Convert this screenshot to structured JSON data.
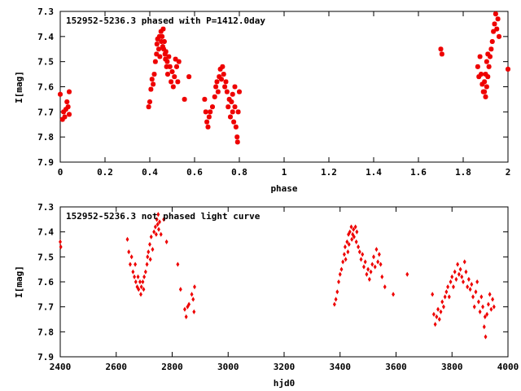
{
  "colors": {
    "series": "#ee0000",
    "axes": "#000000",
    "background": "#ffffff"
  },
  "chart_data": [
    {
      "type": "scatter",
      "title": "152952-5236.3 phased with P=1412.0day",
      "xlabel": "phase",
      "ylabel": "I[mag]",
      "xlim": [
        0,
        2
      ],
      "ylim": [
        7.3,
        7.9
      ],
      "y_inverted": true,
      "grid": false,
      "marker": "star",
      "xticks": [
        "0",
        "0.2",
        "0.4",
        "0.6",
        "0.8",
        "1",
        "1.2",
        "1.4",
        "1.6",
        "1.8",
        "2"
      ],
      "xtick_values": [
        0,
        0.2,
        0.4,
        0.6,
        0.8,
        1,
        1.2,
        1.4,
        1.6,
        1.8,
        2
      ],
      "yticks": [
        "7.3",
        "7.4",
        "7.5",
        "7.6",
        "7.7",
        "7.8",
        "7.9"
      ],
      "ytick_values": [
        7.3,
        7.4,
        7.5,
        7.6,
        7.7,
        7.8,
        7.9
      ],
      "points": [
        [
          0.0,
          7.63
        ],
        [
          0.01,
          7.73
        ],
        [
          0.015,
          7.7
        ],
        [
          0.02,
          7.72
        ],
        [
          0.025,
          7.69
        ],
        [
          0.03,
          7.66
        ],
        [
          0.035,
          7.68
        ],
        [
          0.04,
          7.71
        ],
        [
          0.04,
          7.62
        ],
        [
          0.395,
          7.68
        ],
        [
          0.4,
          7.66
        ],
        [
          0.405,
          7.61
        ],
        [
          0.41,
          7.57
        ],
        [
          0.415,
          7.59
        ],
        [
          0.42,
          7.55
        ],
        [
          0.425,
          7.5
        ],
        [
          0.43,
          7.47
        ],
        [
          0.432,
          7.43
        ],
        [
          0.435,
          7.41
        ],
        [
          0.44,
          7.45
        ],
        [
          0.443,
          7.4
        ],
        [
          0.445,
          7.48
        ],
        [
          0.45,
          7.38
        ],
        [
          0.452,
          7.42
        ],
        [
          0.455,
          7.4
        ],
        [
          0.458,
          7.44
        ],
        [
          0.46,
          7.37
        ],
        [
          0.462,
          7.45
        ],
        [
          0.465,
          7.42
        ],
        [
          0.468,
          7.47
        ],
        [
          0.47,
          7.49
        ],
        [
          0.472,
          7.46
        ],
        [
          0.475,
          7.52
        ],
        [
          0.478,
          7.5
        ],
        [
          0.48,
          7.55
        ],
        [
          0.485,
          7.48
        ],
        [
          0.49,
          7.52
        ],
        [
          0.495,
          7.58
        ],
        [
          0.5,
          7.54
        ],
        [
          0.505,
          7.6
        ],
        [
          0.51,
          7.56
        ],
        [
          0.515,
          7.49
        ],
        [
          0.52,
          7.52
        ],
        [
          0.525,
          7.58
        ],
        [
          0.53,
          7.5
        ],
        [
          0.555,
          7.65
        ],
        [
          0.575,
          7.56
        ],
        [
          0.645,
          7.65
        ],
        [
          0.65,
          7.7
        ],
        [
          0.655,
          7.74
        ],
        [
          0.66,
          7.76
        ],
        [
          0.665,
          7.72
        ],
        [
          0.67,
          7.7
        ],
        [
          0.68,
          7.68
        ],
        [
          0.69,
          7.64
        ],
        [
          0.695,
          7.6
        ],
        [
          0.7,
          7.58
        ],
        [
          0.705,
          7.62
        ],
        [
          0.71,
          7.56
        ],
        [
          0.715,
          7.53
        ],
        [
          0.72,
          7.57
        ],
        [
          0.725,
          7.52
        ],
        [
          0.73,
          7.55
        ],
        [
          0.735,
          7.6
        ],
        [
          0.74,
          7.58
        ],
        [
          0.745,
          7.62
        ],
        [
          0.75,
          7.68
        ],
        [
          0.755,
          7.65
        ],
        [
          0.76,
          7.72
        ],
        [
          0.765,
          7.66
        ],
        [
          0.77,
          7.7
        ],
        [
          0.775,
          7.74
        ],
        [
          0.78,
          7.68
        ],
        [
          0.785,
          7.76
        ],
        [
          0.79,
          7.8
        ],
        [
          0.792,
          7.82
        ],
        [
          0.795,
          7.7
        ],
        [
          0.8,
          7.62
        ],
        [
          0.78,
          7.6
        ],
        [
          0.77,
          7.63
        ],
        [
          1.7,
          7.45
        ],
        [
          1.705,
          7.47
        ],
        [
          1.865,
          7.52
        ],
        [
          1.87,
          7.56
        ],
        [
          1.875,
          7.48
        ],
        [
          1.88,
          7.55
        ],
        [
          1.885,
          7.59
        ],
        [
          1.89,
          7.62
        ],
        [
          1.895,
          7.58
        ],
        [
          1.9,
          7.64
        ],
        [
          1.905,
          7.6
        ],
        [
          1.91,
          7.56
        ],
        [
          1.915,
          7.52
        ],
        [
          1.92,
          7.48
        ],
        [
          1.925,
          7.45
        ],
        [
          1.93,
          7.42
        ],
        [
          1.935,
          7.38
        ],
        [
          1.94,
          7.35
        ],
        [
          1.945,
          7.31
        ],
        [
          1.95,
          7.37
        ],
        [
          1.955,
          7.33
        ],
        [
          1.96,
          7.4
        ],
        [
          1.905,
          7.5
        ],
        [
          1.91,
          7.47
        ],
        [
          1.9,
          7.55
        ],
        [
          1.895,
          7.62
        ],
        [
          2.0,
          7.53
        ]
      ]
    },
    {
      "type": "scatter",
      "title": "152952-5236.3 not phased light curve",
      "xlabel": "hjd0",
      "ylabel": "I[mag]",
      "xlim": [
        2400,
        4000
      ],
      "ylim": [
        7.3,
        7.9
      ],
      "y_inverted": true,
      "grid": false,
      "marker": "diamond",
      "xticks": [
        "2400",
        "2600",
        "2800",
        "3000",
        "3200",
        "3400",
        "3600",
        "3800",
        "4000"
      ],
      "xtick_values": [
        2400,
        2600,
        2800,
        3000,
        3200,
        3400,
        3600,
        3800,
        4000
      ],
      "yticks": [
        "7.3",
        "7.4",
        "7.5",
        "7.6",
        "7.7",
        "7.8",
        "7.9"
      ],
      "ytick_values": [
        7.3,
        7.4,
        7.5,
        7.6,
        7.7,
        7.8,
        7.9
      ],
      "points": [
        [
          2400,
          7.44
        ],
        [
          2402,
          7.46
        ],
        [
          2640,
          7.43
        ],
        [
          2645,
          7.48
        ],
        [
          2650,
          7.53
        ],
        [
          2655,
          7.5
        ],
        [
          2660,
          7.56
        ],
        [
          2665,
          7.58
        ],
        [
          2668,
          7.53
        ],
        [
          2670,
          7.6
        ],
        [
          2675,
          7.62
        ],
        [
          2678,
          7.58
        ],
        [
          2680,
          7.63
        ],
        [
          2685,
          7.6
        ],
        [
          2688,
          7.65
        ],
        [
          2690,
          7.62
        ],
        [
          2695,
          7.6
        ],
        [
          2698,
          7.63
        ],
        [
          2700,
          7.58
        ],
        [
          2705,
          7.56
        ],
        [
          2710,
          7.53
        ],
        [
          2712,
          7.5
        ],
        [
          2715,
          7.48
        ],
        [
          2720,
          7.45
        ],
        [
          2722,
          7.51
        ],
        [
          2725,
          7.42
        ],
        [
          2730,
          7.47
        ],
        [
          2735,
          7.4
        ],
        [
          2740,
          7.38
        ],
        [
          2743,
          7.41
        ],
        [
          2745,
          7.35
        ],
        [
          2748,
          7.37
        ],
        [
          2750,
          7.33
        ],
        [
          2752,
          7.39
        ],
        [
          2755,
          7.36
        ],
        [
          2760,
          7.41
        ],
        [
          2770,
          7.35
        ],
        [
          2780,
          7.44
        ],
        [
          2820,
          7.53
        ],
        [
          2830,
          7.63
        ],
        [
          2845,
          7.71
        ],
        [
          2850,
          7.74
        ],
        [
          2855,
          7.7
        ],
        [
          2860,
          7.69
        ],
        [
          2870,
          7.65
        ],
        [
          2875,
          7.67
        ],
        [
          2878,
          7.72
        ],
        [
          2880,
          7.62
        ],
        [
          3380,
          7.69
        ],
        [
          3385,
          7.67
        ],
        [
          3390,
          7.64
        ],
        [
          3395,
          7.6
        ],
        [
          3400,
          7.57
        ],
        [
          3405,
          7.55
        ],
        [
          3410,
          7.52
        ],
        [
          3415,
          7.49
        ],
        [
          3418,
          7.46
        ],
        [
          3420,
          7.51
        ],
        [
          3425,
          7.44
        ],
        [
          3428,
          7.48
        ],
        [
          3430,
          7.41
        ],
        [
          3432,
          7.45
        ],
        [
          3435,
          7.4
        ],
        [
          3440,
          7.38
        ],
        [
          3442,
          7.43
        ],
        [
          3445,
          7.41
        ],
        [
          3448,
          7.39
        ],
        [
          3450,
          7.42
        ],
        [
          3455,
          7.38
        ],
        [
          3458,
          7.44
        ],
        [
          3460,
          7.4
        ],
        [
          3465,
          7.46
        ],
        [
          3470,
          7.48
        ],
        [
          3475,
          7.51
        ],
        [
          3480,
          7.49
        ],
        [
          3485,
          7.54
        ],
        [
          3490,
          7.52
        ],
        [
          3495,
          7.57
        ],
        [
          3500,
          7.55
        ],
        [
          3505,
          7.59
        ],
        [
          3510,
          7.56
        ],
        [
          3515,
          7.53
        ],
        [
          3520,
          7.5
        ],
        [
          3525,
          7.54
        ],
        [
          3530,
          7.47
        ],
        [
          3535,
          7.52
        ],
        [
          3540,
          7.49
        ],
        [
          3545,
          7.53
        ],
        [
          3550,
          7.58
        ],
        [
          3560,
          7.62
        ],
        [
          3590,
          7.65
        ],
        [
          3640,
          7.57
        ],
        [
          3730,
          7.65
        ],
        [
          3735,
          7.73
        ],
        [
          3740,
          7.77
        ],
        [
          3745,
          7.74
        ],
        [
          3750,
          7.71
        ],
        [
          3755,
          7.75
        ],
        [
          3760,
          7.72
        ],
        [
          3765,
          7.68
        ],
        [
          3770,
          7.7
        ],
        [
          3775,
          7.66
        ],
        [
          3780,
          7.64
        ],
        [
          3785,
          7.62
        ],
        [
          3790,
          7.66
        ],
        [
          3795,
          7.6
        ],
        [
          3800,
          7.58
        ],
        [
          3805,
          7.62
        ],
        [
          3810,
          7.56
        ],
        [
          3815,
          7.59
        ],
        [
          3820,
          7.53
        ],
        [
          3825,
          7.57
        ],
        [
          3830,
          7.55
        ],
        [
          3835,
          7.58
        ],
        [
          3840,
          7.6
        ],
        [
          3845,
          7.52
        ],
        [
          3850,
          7.56
        ],
        [
          3855,
          7.62
        ],
        [
          3860,
          7.59
        ],
        [
          3865,
          7.63
        ],
        [
          3870,
          7.61
        ],
        [
          3875,
          7.66
        ],
        [
          3880,
          7.7
        ],
        [
          3885,
          7.64
        ],
        [
          3890,
          7.6
        ],
        [
          3895,
          7.68
        ],
        [
          3900,
          7.72
        ],
        [
          3905,
          7.66
        ],
        [
          3910,
          7.7
        ],
        [
          3915,
          7.78
        ],
        [
          3918,
          7.74
        ],
        [
          3920,
          7.82
        ],
        [
          3925,
          7.73
        ],
        [
          3930,
          7.69
        ],
        [
          3935,
          7.65
        ],
        [
          3940,
          7.71
        ],
        [
          3945,
          7.67
        ],
        [
          3950,
          7.7
        ]
      ]
    }
  ]
}
